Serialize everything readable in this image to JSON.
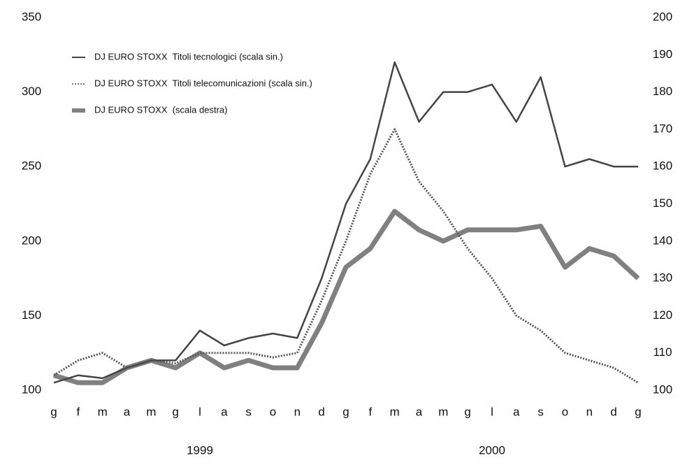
{
  "chart_data": {
    "type": "line",
    "categories": [
      "g",
      "f",
      "m",
      "a",
      "m",
      "g",
      "l",
      "a",
      "s",
      "o",
      "n",
      "d",
      "g",
      "f",
      "m",
      "a",
      "m",
      "g",
      "l",
      "a",
      "s",
      "o",
      "n",
      "d",
      "g"
    ],
    "years": [
      {
        "label": "1999",
        "from": 0,
        "to": 12
      },
      {
        "label": "2000",
        "from": 12,
        "to": 24
      }
    ],
    "ylim": [
      100,
      350
    ],
    "yticks": [
      100,
      150,
      200,
      250,
      300,
      350
    ],
    "y2lim": [
      100,
      200
    ],
    "y2ticks": [
      100,
      110,
      120,
      130,
      140,
      150,
      160,
      170,
      180,
      190,
      200
    ],
    "legend": "upper left",
    "series": [
      {
        "name": "DJ EURO STOXX  Titoli tecnologici (scala sin.)",
        "color": "#444444",
        "style": "solid",
        "width": 2.5,
        "values": [
          105,
          110,
          108,
          115,
          120,
          120,
          140,
          130,
          135,
          138,
          135,
          175,
          225,
          255,
          320,
          280,
          300,
          300,
          305,
          280,
          310,
          250,
          255,
          250,
          250
        ]
      },
      {
        "name": "DJ EURO STOXX  Titoli telecomunicazioni (scala sin.)",
        "color": "#555555",
        "style": "dotted",
        "width": 3,
        "values": [
          110,
          120,
          125,
          115,
          120,
          118,
          125,
          125,
          125,
          122,
          125,
          160,
          200,
          245,
          275,
          240,
          220,
          195,
          175,
          150,
          140,
          125,
          120,
          115,
          105
        ]
      },
      {
        "name": "DJ EURO STOXX  (scala destra)",
        "color": "#6a6a6a",
        "style": "band",
        "width": 7,
        "axis": "y2",
        "values": [
          104,
          102,
          102,
          106,
          108,
          106,
          110,
          106,
          108,
          106,
          106,
          118,
          133,
          138,
          148,
          143,
          140,
          143,
          143,
          143,
          144,
          133,
          138,
          136,
          130
        ]
      }
    ]
  }
}
